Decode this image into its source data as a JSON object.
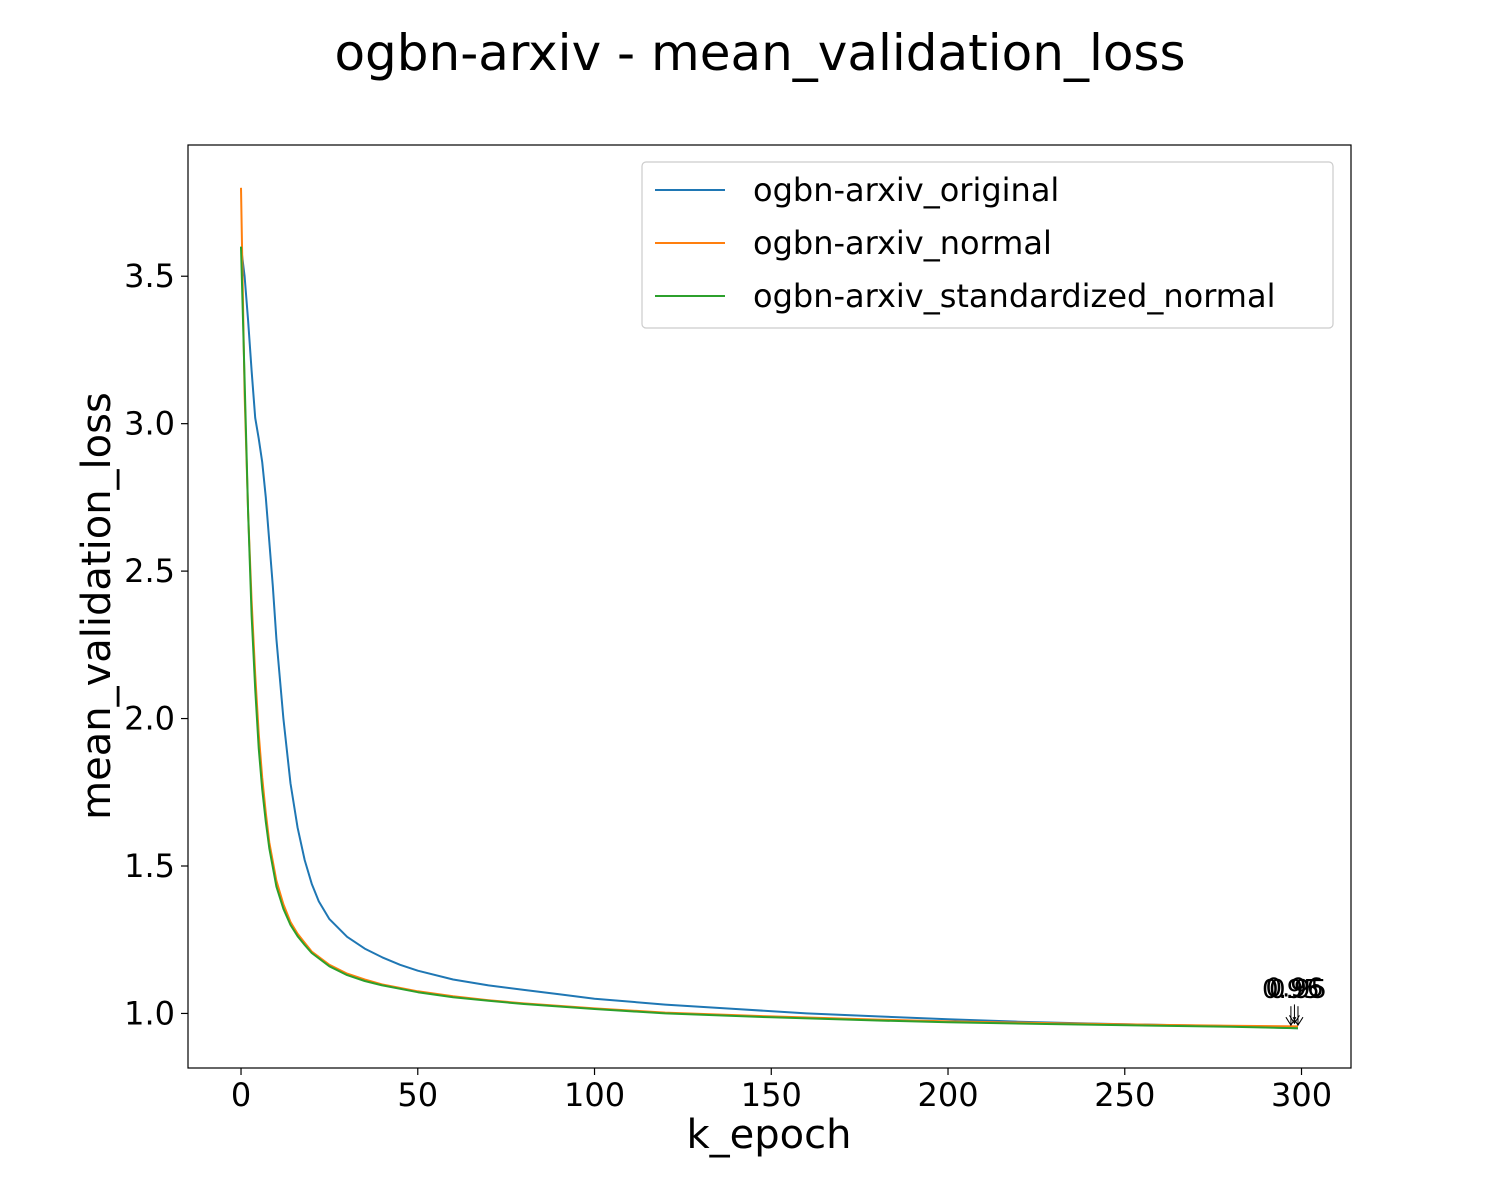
{
  "chart_data": {
    "type": "line",
    "title": "ogbn-arxiv - mean_validation_loss",
    "xlabel": "k_epoch",
    "ylabel": "mean_validation_loss",
    "xlim": [
      -15,
      314
    ],
    "ylim": [
      0.815,
      3.945
    ],
    "xticks": [
      0,
      50,
      100,
      150,
      200,
      250,
      300
    ],
    "xtick_labels": [
      "0",
      "50",
      "100",
      "150",
      "200",
      "250",
      "300"
    ],
    "yticks": [
      1.0,
      1.5,
      2.0,
      2.5,
      3.0,
      3.5
    ],
    "ytick_labels": [
      "1.0",
      "1.5",
      "2.0",
      "2.5",
      "3.0",
      "3.5"
    ],
    "grid": false,
    "legend_position": "upper-right",
    "series": [
      {
        "name": "ogbn-arxiv_original",
        "color": "#1f77b4",
        "x": [
          0,
          1,
          2,
          3,
          4,
          5,
          6,
          7,
          8,
          9,
          10,
          12,
          14,
          16,
          18,
          20,
          22,
          25,
          30,
          35,
          40,
          45,
          50,
          60,
          70,
          80,
          90,
          100,
          120,
          140,
          160,
          180,
          200,
          220,
          240,
          260,
          280,
          299
        ],
        "y": [
          3.6,
          3.5,
          3.35,
          3.18,
          3.02,
          2.95,
          2.87,
          2.75,
          2.6,
          2.45,
          2.27,
          2.0,
          1.78,
          1.63,
          1.52,
          1.44,
          1.38,
          1.32,
          1.26,
          1.22,
          1.19,
          1.165,
          1.145,
          1.115,
          1.095,
          1.08,
          1.065,
          1.05,
          1.03,
          1.015,
          1.0,
          0.99,
          0.98,
          0.972,
          0.966,
          0.961,
          0.957,
          0.95
        ]
      },
      {
        "name": "ogbn-arxiv_normal",
        "color": "#ff7f0e",
        "x": [
          0,
          1,
          2,
          3,
          4,
          5,
          6,
          7,
          8,
          10,
          12,
          14,
          16,
          18,
          20,
          25,
          30,
          35,
          40,
          50,
          60,
          70,
          80,
          100,
          120,
          150,
          180,
          200,
          230,
          260,
          280,
          299
        ],
        "y": [
          3.8,
          3.1,
          2.7,
          2.4,
          2.15,
          1.95,
          1.8,
          1.68,
          1.58,
          1.45,
          1.37,
          1.31,
          1.27,
          1.24,
          1.21,
          1.165,
          1.135,
          1.115,
          1.098,
          1.075,
          1.058,
          1.045,
          1.034,
          1.017,
          1.003,
          0.99,
          0.979,
          0.973,
          0.967,
          0.961,
          0.958,
          0.956
        ]
      },
      {
        "name": "ogbn-arxiv_standardized_normal",
        "color": "#2ca02c",
        "x": [
          0,
          1,
          2,
          3,
          4,
          5,
          6,
          7,
          8,
          10,
          12,
          14,
          16,
          18,
          20,
          25,
          30,
          35,
          40,
          50,
          60,
          70,
          80,
          100,
          120,
          150,
          180,
          200,
          230,
          260,
          280,
          299
        ],
        "y": [
          3.6,
          3.15,
          2.7,
          2.35,
          2.1,
          1.9,
          1.76,
          1.65,
          1.56,
          1.43,
          1.355,
          1.3,
          1.262,
          1.232,
          1.205,
          1.16,
          1.13,
          1.11,
          1.095,
          1.072,
          1.055,
          1.043,
          1.032,
          1.015,
          1.0,
          0.987,
          0.976,
          0.97,
          0.964,
          0.958,
          0.955,
          0.95
        ]
      }
    ],
    "annotations": [
      {
        "text": "0.95",
        "x": 297,
        "y": 0.95
      },
      {
        "text": "0.96",
        "x": 298,
        "y": 0.956
      },
      {
        "text": "0.95",
        "x": 299,
        "y": 0.95
      }
    ]
  }
}
